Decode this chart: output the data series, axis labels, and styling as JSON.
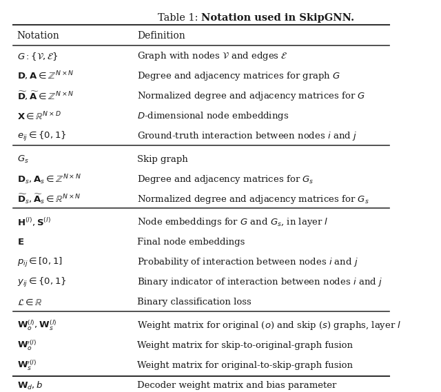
{
  "title": "Table 1: Notation used in SkipGNN.",
  "title_bold_part": "Notation used in SkipGNN.",
  "col1_header": "Notation",
  "col2_header": "Definition",
  "sections": [
    {
      "rows": [
        [
          "$G : \\{\\mathcal{V}, \\mathcal{E}\\}$",
          "Graph with nodes $\\mathcal{V}$ and edges $\\mathcal{E}$"
        ],
        [
          "$\\mathbf{D}, \\mathbf{A} \\in \\mathbb{Z}^{N\\times N}$",
          "Degree and adjacency matrices for graph $G$"
        ],
        [
          "$\\widetilde{\\mathbf{D}}, \\widetilde{\\mathbf{A}} \\in \\mathbb{Z}^{N\\times N}$",
          "Normalized degree and adjacency matrices for $G$"
        ],
        [
          "$\\mathbf{X} \\in \\mathbb{R}^{N\\times D}$",
          "$D$-dimensional node embeddings"
        ],
        [
          "$e_{ij} \\in \\{0, 1\\}$",
          "Ground-truth interaction between nodes $i$ and $j$"
        ]
      ]
    },
    {
      "rows": [
        [
          "$G_s$",
          "Skip graph"
        ],
        [
          "$\\mathbf{D}_s, \\mathbf{A}_s \\in \\mathbb{Z}^{N\\times N}$",
          "Degree and adjacency matrices for $G_s$"
        ],
        [
          "$\\widetilde{\\mathbf{D}}_s, \\widetilde{\\mathbf{A}}_s \\in \\mathbb{R}^{N\\times N}$",
          "Normalized degree and adjacency matrices for $G_s$"
        ]
      ]
    },
    {
      "rows": [
        [
          "$\\mathbf{H}^{(l)}, \\mathbf{S}^{(l)}$",
          "Node embeddings for $G$ and $G_s$, in layer $l$"
        ],
        [
          "$\\mathbf{E}$",
          "Final node embeddings"
        ],
        [
          "$p_{ij} \\in [0, 1]$",
          "Probability of interaction between nodes $i$ and $j$"
        ],
        [
          "$y_{ij} \\in \\{0, 1\\}$",
          "Binary indicator of interaction between nodes $i$ and $j$"
        ],
        [
          "$\\mathcal{L} \\in \\mathbb{R}$",
          "Binary classification loss"
        ]
      ]
    },
    {
      "rows": [
        [
          "$\\mathbf{W}_o^{(l)}, \\mathbf{W}_s^{(l)}$",
          "Weight matrix for original ($o$) and skip ($s$) graphs, layer $l$"
        ],
        [
          "$\\mathbf{W}_o^{\\prime(l)}$",
          "Weight matrix for skip-to-original-graph fusion"
        ],
        [
          "$\\mathbf{W}_s^{\\prime(l)}$",
          "Weight matrix for original-to-skip-graph fusion"
        ],
        [
          "$\\mathbf{W}_d, b$",
          "Decoder weight matrix and bias parameter"
        ]
      ]
    }
  ],
  "bg_color": "#ffffff",
  "text_color": "#1a1a1a",
  "line_color": "#333333",
  "figsize": [
    6.4,
    5.69
  ],
  "dpi": 100
}
